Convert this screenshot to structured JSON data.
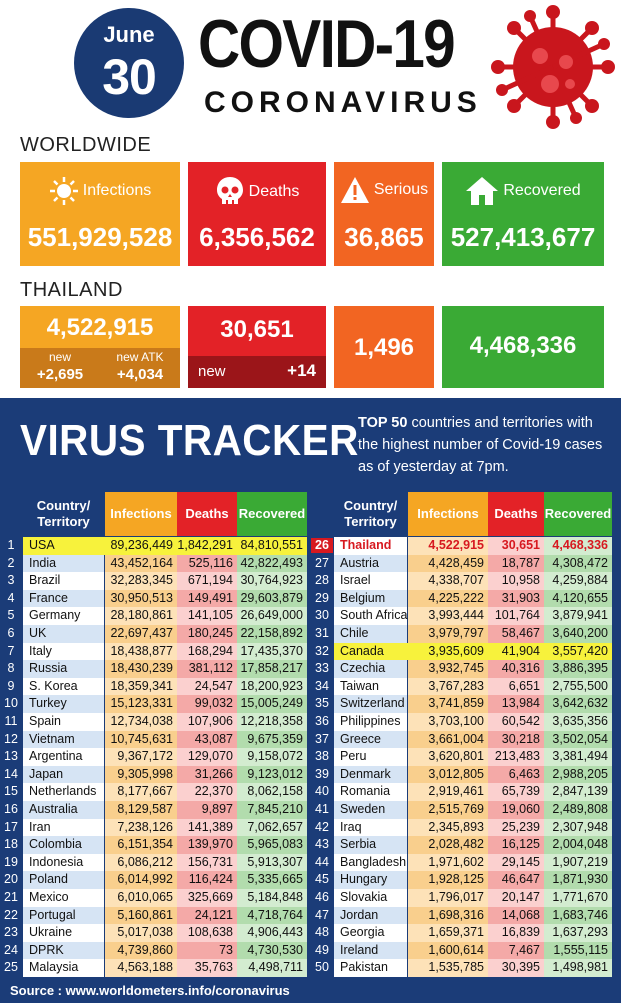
{
  "header": {
    "month": "June",
    "day": "30",
    "title": "COVID-19",
    "subtitle": "CORONAVIRUS"
  },
  "worldwide": {
    "label": "WORLDWIDE",
    "infections_label": "Infections",
    "infections": "551,929,528",
    "deaths_label": "Deaths",
    "deaths": "6,356,562",
    "serious_label": "Serious",
    "serious": "36,865",
    "recovered_label": "Recovered",
    "recovered": "527,413,677"
  },
  "thailand": {
    "label": "THAILAND",
    "infections": "4,522,915",
    "new_label": "new",
    "new_value": "+2,695",
    "new_atk_label": "new ATK",
    "new_atk_value": "+4,034",
    "deaths": "30,651",
    "deaths_new_label": "new",
    "deaths_new_value": "+14",
    "serious": "1,496",
    "recovered": "4,468,336"
  },
  "tracker": {
    "title": "VIRUS TRACKER",
    "desc_bold": "TOP 50",
    "desc_rest": " countries and territories with the highest number of Covid-19 cases as of yesterday at 7pm.",
    "col_country_1": "Country/",
    "col_country_2": "Territory",
    "col_infections": "Infections",
    "col_deaths": "Deaths",
    "col_recovered": "Recovered"
  },
  "rows_left": [
    [
      "1",
      "USA",
      "89,236,449",
      "1,842,291",
      "84,810,551"
    ],
    [
      "2",
      "India",
      "43,452,164",
      "525,116",
      "42,822,493"
    ],
    [
      "3",
      "Brazil",
      "32,283,345",
      "671,194",
      "30,764,923"
    ],
    [
      "4",
      "France",
      "30,950,513",
      "149,491",
      "29,603,879"
    ],
    [
      "5",
      "Germany",
      "28,180,861",
      "141,105",
      "26,649,000"
    ],
    [
      "6",
      "UK",
      "22,697,437",
      "180,245",
      "22,158,892"
    ],
    [
      "7",
      "Italy",
      "18,438,877",
      "168,294",
      "17,435,370"
    ],
    [
      "8",
      "Russia",
      "18,430,239",
      "381,112",
      "17,858,217"
    ],
    [
      "9",
      "S. Korea",
      "18,359,341",
      "24,547",
      "18,200,923"
    ],
    [
      "10",
      "Turkey",
      "15,123,331",
      "99,032",
      "15,005,249"
    ],
    [
      "11",
      "Spain",
      "12,734,038",
      "107,906",
      "12,218,358"
    ],
    [
      "12",
      "Vietnam",
      "10,745,631",
      "43,087",
      "9,675,359"
    ],
    [
      "13",
      "Argentina",
      "9,367,172",
      "129,070",
      "9,158,072"
    ],
    [
      "14",
      "Japan",
      "9,305,998",
      "31,266",
      "9,123,012"
    ],
    [
      "15",
      "Netherlands",
      "8,177,667",
      "22,370",
      "8,062,158"
    ],
    [
      "16",
      "Australia",
      "8,129,587",
      "9,897",
      "7,845,210"
    ],
    [
      "17",
      "Iran",
      "7,238,126",
      "141,389",
      "7,062,657"
    ],
    [
      "18",
      "Colombia",
      "6,151,354",
      "139,970",
      "5,965,083"
    ],
    [
      "19",
      "Indonesia",
      "6,086,212",
      "156,731",
      "5,913,307"
    ],
    [
      "20",
      "Poland",
      "6,014,992",
      "116,424",
      "5,335,665"
    ],
    [
      "21",
      "Mexico",
      "6,010,065",
      "325,669",
      "5,184,848"
    ],
    [
      "22",
      "Portugal",
      "5,160,861",
      "24,121",
      "4,718,764"
    ],
    [
      "23",
      "Ukraine",
      "5,017,038",
      "108,638",
      "4,906,443"
    ],
    [
      "24",
      "DPRK",
      "4,739,860",
      "73",
      "4,730,530"
    ],
    [
      "25",
      "Malaysia",
      "4,563,188",
      "35,763",
      "4,498,711"
    ]
  ],
  "rows_right": [
    [
      "26",
      "Thailand",
      "4,522,915",
      "30,651",
      "4,468,336"
    ],
    [
      "27",
      "Austria",
      "4,428,459",
      "18,787",
      "4,308,472"
    ],
    [
      "28",
      "Israel",
      "4,338,707",
      "10,958",
      "4,259,884"
    ],
    [
      "29",
      "Belgium",
      "4,225,222",
      "31,903",
      "4,120,655"
    ],
    [
      "30",
      "South Africa",
      "3,993,444",
      "101,764",
      "3,879,941"
    ],
    [
      "31",
      "Chile",
      "3,979,797",
      "58,467",
      "3,640,200"
    ],
    [
      "32",
      "Canada",
      "3,935,609",
      "41,904",
      "3,557,420"
    ],
    [
      "33",
      "Czechia",
      "3,932,745",
      "40,316",
      "3,886,395"
    ],
    [
      "34",
      "Taiwan",
      "3,767,283",
      "6,651",
      "2,755,500"
    ],
    [
      "35",
      "Switzerland",
      "3,741,859",
      "13,984",
      "3,642,632"
    ],
    [
      "36",
      "Philippines",
      "3,703,100",
      "60,542",
      "3,635,356"
    ],
    [
      "37",
      "Greece",
      "3,661,004",
      "30,218",
      "3,502,054"
    ],
    [
      "38",
      "Peru",
      "3,620,801",
      "213,483",
      "3,381,494"
    ],
    [
      "39",
      "Denmark",
      "3,012,805",
      "6,463",
      "2,988,205"
    ],
    [
      "40",
      "Romania",
      "2,919,461",
      "65,739",
      "2,847,139"
    ],
    [
      "41",
      "Sweden",
      "2,515,769",
      "19,060",
      "2,489,808"
    ],
    [
      "42",
      "Iraq",
      "2,345,893",
      "25,239",
      "2,307,948"
    ],
    [
      "43",
      "Serbia",
      "2,028,482",
      "16,125",
      "2,004,048"
    ],
    [
      "44",
      "Bangladesh",
      "1,971,602",
      "29,145",
      "1,907,219"
    ],
    [
      "45",
      "Hungary",
      "1,928,125",
      "46,647",
      "1,871,930"
    ],
    [
      "46",
      "Slovakia",
      "1,796,017",
      "20,147",
      "1,771,670"
    ],
    [
      "47",
      "Jordan",
      "1,698,316",
      "14,068",
      "1,683,746"
    ],
    [
      "48",
      "Georgia",
      "1,659,371",
      "16,839",
      "1,637,293"
    ],
    [
      "49",
      "Ireland",
      "1,600,614",
      "7,467",
      "1,555,115"
    ],
    [
      "50",
      "Pakistan",
      "1,535,785",
      "30,395",
      "1,498,981"
    ]
  ],
  "source": "Source : www.worldometers.info/coronavirus",
  "colors": {
    "navy": "#1b3c78",
    "orange": "#f5a623",
    "red": "#e32227",
    "orange_red": "#f26522",
    "green": "#3aaa35",
    "highlight_yellow": "#f7f23c",
    "thailand_red": "#d71920"
  }
}
